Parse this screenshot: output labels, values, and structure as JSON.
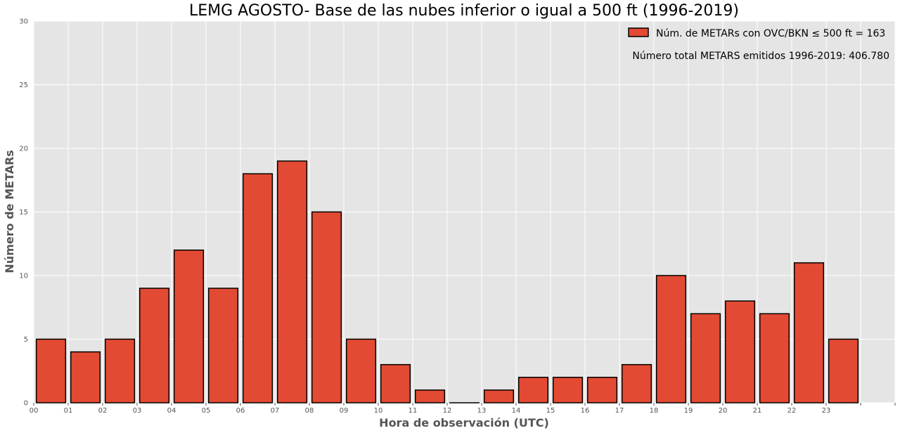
{
  "chart_data": {
    "type": "bar",
    "title": "LEMG AGOSTO- Base de las nubes inferior o igual a 500 ft (1996-2019)",
    "xlabel": "Hora de observación (UTC)",
    "ylabel": "Número de METARs",
    "categories": [
      "00",
      "01",
      "02",
      "03",
      "04",
      "05",
      "06",
      "07",
      "08",
      "09",
      "10",
      "11",
      "12",
      "13",
      "14",
      "15",
      "16",
      "17",
      "18",
      "19",
      "20",
      "21",
      "22",
      "23"
    ],
    "values": [
      5,
      4,
      5,
      9,
      12,
      9,
      18,
      19,
      15,
      5,
      3,
      1,
      0,
      1,
      2,
      2,
      2,
      3,
      10,
      7,
      8,
      7,
      11,
      5
    ],
    "ylim": [
      0,
      30
    ],
    "yticks": [
      0,
      5,
      10,
      15,
      20,
      25,
      30
    ],
    "grid": true,
    "legend": {
      "position": "top-right",
      "label": "Núm. de METARs con OVC/BKN ≤ 500 ft = 163"
    },
    "annotation": "Número total METARS emitidos 1996-2019:  406.780",
    "colors": {
      "bar": "#e24a33",
      "bar_edge": "#000000",
      "plot_background": "#e5e5e5",
      "grid": "#ffffff"
    }
  }
}
